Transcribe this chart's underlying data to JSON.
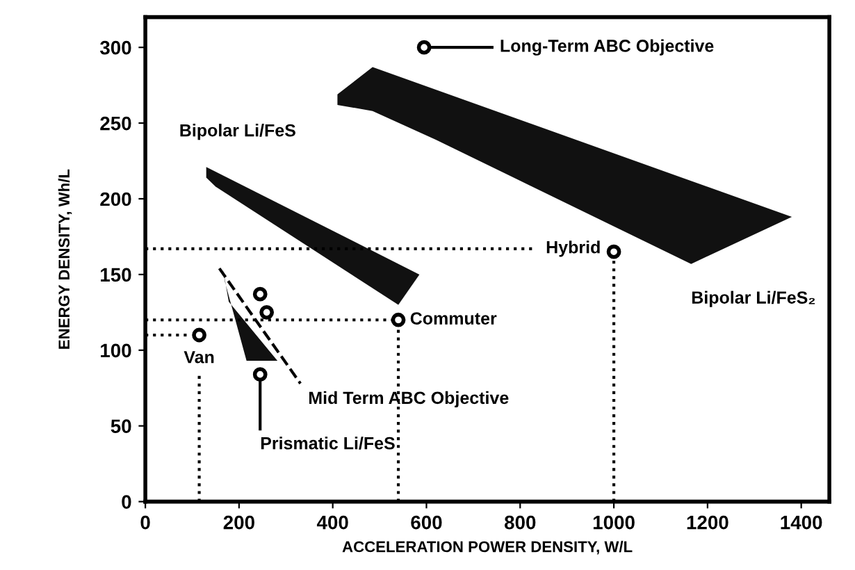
{
  "chart_data": {
    "type": "scatter",
    "xlabel": "ACCELERATION POWER DENSITY, W/L",
    "ylabel": "ENERGY DENSITY, Wh/L",
    "xlim": [
      0,
      1460
    ],
    "ylim": [
      0,
      320
    ],
    "xticks": [
      0,
      200,
      400,
      600,
      800,
      1000,
      1200,
      1400
    ],
    "yticks": [
      0,
      50,
      100,
      150,
      200,
      250,
      300
    ],
    "grid": false,
    "legend": false,
    "series": [
      {
        "type": "area",
        "color": "#111111",
        "x": [
          410,
          485,
          1380,
          1165,
          620,
          485,
          410
        ],
        "values": [
          269,
          287,
          188,
          157,
          239,
          258,
          262
        ]
      },
      {
        "type": "area",
        "color": "#111111",
        "x": [
          130,
          585,
          540,
          150,
          130
        ],
        "values": [
          221,
          150,
          130,
          208,
          214
        ]
      },
      {
        "type": "area",
        "color": "#111111",
        "x": [
          165,
          178,
          282,
          216,
          170
        ],
        "values": [
          155,
          132,
          93,
          93,
          145
        ]
      },
      {
        "type": "line",
        "color": "#000000",
        "line_style": "dotted",
        "x": [
          0,
          830
        ],
        "values": [
          167,
          167
        ]
      },
      {
        "type": "line",
        "color": "#000000",
        "line_style": "dotted",
        "x": [
          1000,
          1000
        ],
        "values": [
          0,
          160
        ]
      },
      {
        "type": "line",
        "color": "#000000",
        "line_style": "dotted",
        "x": [
          0,
          535
        ],
        "values": [
          120,
          120
        ]
      },
      {
        "type": "line",
        "color": "#000000",
        "line_style": "dotted",
        "x": [
          540,
          540
        ],
        "values": [
          0,
          115
        ]
      },
      {
        "type": "line",
        "color": "#000000",
        "line_style": "dotted",
        "x": [
          0,
          95
        ],
        "values": [
          110,
          110
        ]
      },
      {
        "type": "line",
        "color": "#000000",
        "line_style": "dotted",
        "x": [
          115,
          115
        ],
        "values": [
          0,
          83
        ]
      },
      {
        "type": "line",
        "color": "#000000",
        "line_style": "dashed",
        "x": [
          158,
          331
        ],
        "values": [
          154,
          78
        ]
      },
      {
        "type": "line",
        "color": "#000000",
        "line_style": "solid",
        "x": [
          595,
          740
        ],
        "values": [
          300,
          300
        ]
      },
      {
        "type": "line",
        "color": "#000000",
        "line_style": "solid",
        "x": [
          245,
          245
        ],
        "values": [
          48,
          84
        ]
      },
      {
        "color": "#000000",
        "marker": "circle",
        "x": [
          115,
          540,
          1000,
          595
        ],
        "values": [
          110,
          120,
          165,
          300
        ]
      },
      {
        "color": "#000000",
        "marker": "circle",
        "x": [
          245,
          259,
          245
        ],
        "values": [
          137,
          125,
          84
        ]
      }
    ],
    "annotations": [
      {
        "text": "Long-Term ABC Objective",
        "x": 740,
        "y": 300
      },
      {
        "text": "Bipolar Li/FeS",
        "x": 130,
        "y": 221
      },
      {
        "text": "Hybrid",
        "x": 830,
        "y": 167
      },
      {
        "text": "Bipolar Li/FeS₂",
        "x": 1165,
        "y": 157
      },
      {
        "text": "Commuter",
        "x": 540,
        "y": 120
      },
      {
        "text": "Van",
        "x": 115,
        "y": 110
      },
      {
        "text": "Mid Term ABC Objective",
        "x": 331,
        "y": 78
      },
      {
        "text": "Prismatic Li/FeS",
        "x": 245,
        "y": 48
      }
    ]
  }
}
